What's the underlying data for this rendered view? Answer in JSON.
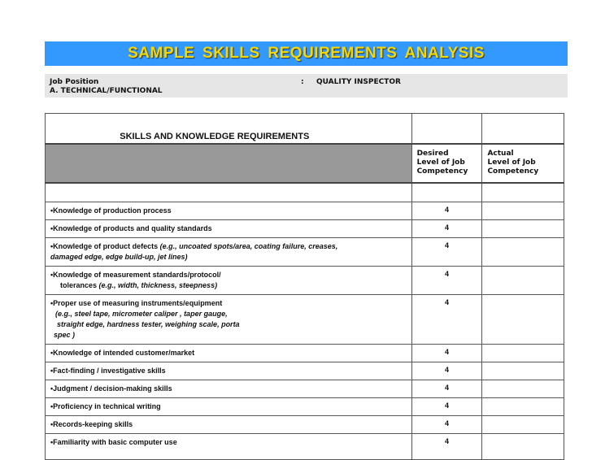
{
  "title": "SAMPLE  SKILLS  REQUIREMENTS  ANALYSIS",
  "info": {
    "job_label": "Job Position",
    "separator": ":",
    "job_value": "QUALITY INSPECTOR",
    "section": "A. TECHNICAL/FUNCTIONAL"
  },
  "table": {
    "heading": "SKILLS AND KNOWLEDGE  REQUIREMENTS",
    "col_desired": [
      "Desired",
      "Level of Job",
      "Competency"
    ],
    "col_actual": [
      "Actual",
      "Level of Job",
      "Competency"
    ],
    "rows": [
      {
        "lines": [
          {
            "plain": "•Knowledge of production process"
          }
        ],
        "desired": "4",
        "actual": ""
      },
      {
        "lines": [
          {
            "plain": "•Knowledge of products and quality standards"
          }
        ],
        "desired": "4",
        "actual": ""
      },
      {
        "lines": [
          {
            "plain": "•Knowledge of product defects ",
            "italic": "(e.g., uncoated spots/area, coating failure, creases,"
          },
          {
            "italic": "damaged edge, edge build-up, jet lines)"
          }
        ],
        "desired": "4",
        "actual": ""
      },
      {
        "lines": [
          {
            "plain": "•Knowledge of  measurement standards/protocol/"
          },
          {
            "plain": "tolerances  ",
            "italic": "(e.g., width, thickness, steepness)"
          }
        ],
        "desired": "4",
        "actual": ""
      },
      {
        "lines": [
          {
            "plain": "•Proper use of measuring instruments/equipment"
          },
          {
            "italic": "(e.g., steel tape, micrometer caliper , taper gauge,"
          },
          {
            "italic": "straight edge, hardness tester, weighing scale, porta"
          },
          {
            "italic": "spec )"
          }
        ],
        "desired": "4",
        "actual": ""
      },
      {
        "lines": [
          {
            "plain": "•Knowledge of intended  customer/market"
          }
        ],
        "desired": "4",
        "actual": ""
      },
      {
        "lines": [
          {
            "plain": "•Fact-finding / investigative skills"
          }
        ],
        "desired": "4",
        "actual": ""
      },
      {
        "lines": [
          {
            "plain": "•Judgment / decision-making skills"
          }
        ],
        "desired": "4",
        "actual": ""
      },
      {
        "lines": [
          {
            "plain": "•Proficiency in technical writing"
          }
        ],
        "desired": "4",
        "actual": ""
      },
      {
        "lines": [
          {
            "plain": "•Records-keeping skills"
          }
        ],
        "desired": "4",
        "actual": ""
      },
      {
        "lines": [
          {
            "plain": "•Familiarity with basic computer use"
          }
        ],
        "desired": "4",
        "actual": ""
      }
    ]
  },
  "colors": {
    "banner": "#3399ff",
    "title": "#f5d800",
    "info_bg": "#e6e6e6",
    "header_gray": "#999999"
  }
}
